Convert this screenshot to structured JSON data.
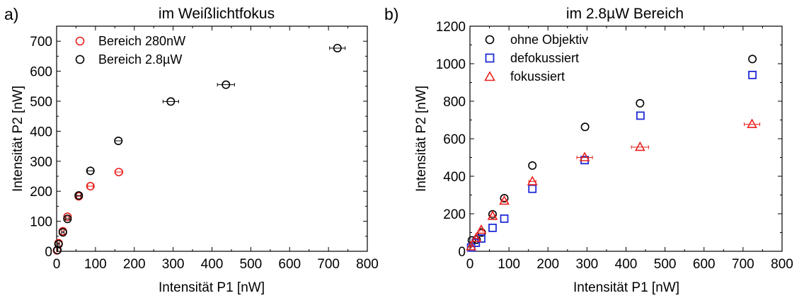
{
  "chart_data": [
    {
      "panel_letter": "a)",
      "type": "scatter",
      "title": "im Weißlichtfokus",
      "xlabel": "Intensität P1 [nW]",
      "ylabel": "Intensität P2 [nW]",
      "xlim": [
        0,
        800
      ],
      "ylim": [
        0,
        750
      ],
      "xticks": [
        0,
        100,
        200,
        300,
        400,
        500,
        600,
        700,
        800
      ],
      "yticks": [
        0,
        100,
        200,
        300,
        400,
        500,
        600,
        700
      ],
      "legend_position": "top-left",
      "series": [
        {
          "name": "Bereich 280nW",
          "color": "#e8211d",
          "marker": "circle",
          "points": [
            {
              "x": 1,
              "y": 3,
              "xerr": 1
            },
            {
              "x": 5,
              "y": 27,
              "xerr": 2
            },
            {
              "x": 16,
              "y": 67,
              "xerr": 3
            },
            {
              "x": 28,
              "y": 115,
              "xerr": 4
            },
            {
              "x": 57,
              "y": 183,
              "xerr": 5
            },
            {
              "x": 87,
              "y": 217,
              "xerr": 7
            },
            {
              "x": 160,
              "y": 264,
              "xerr": 10
            }
          ]
        },
        {
          "name": "Bereich 2.8µW",
          "color": "#000000",
          "marker": "circle",
          "points": [
            {
              "x": 2,
              "y": 4,
              "xerr": 1
            },
            {
              "x": 5,
              "y": 24,
              "xerr": 2
            },
            {
              "x": 16,
              "y": 63,
              "xerr": 3
            },
            {
              "x": 28,
              "y": 108,
              "xerr": 5
            },
            {
              "x": 57,
              "y": 186,
              "xerr": 6
            },
            {
              "x": 87,
              "y": 268,
              "xerr": 8
            },
            {
              "x": 159,
              "y": 368,
              "xerr": 9
            },
            {
              "x": 294,
              "y": 499,
              "xerr": 20
            },
            {
              "x": 436,
              "y": 555,
              "xerr": 22
            },
            {
              "x": 723,
              "y": 677,
              "xerr": 20
            }
          ]
        }
      ]
    },
    {
      "panel_letter": "b)",
      "type": "scatter",
      "title": "im 2.8µW Bereich",
      "xlabel": "Intensität P1 [nW]",
      "ylabel": "Intensität P2 [nW]",
      "xlim": [
        0,
        800
      ],
      "ylim": [
        0,
        1200
      ],
      "xticks": [
        0,
        100,
        200,
        300,
        400,
        500,
        600,
        700,
        800
      ],
      "yticks": [
        0,
        200,
        400,
        600,
        800,
        1000,
        1200
      ],
      "legend_position": "top-left",
      "series": [
        {
          "name": "ohne Objektiv",
          "color": "#000000",
          "marker": "circle",
          "points": [
            {
              "x": 5,
              "y": 58,
              "xerr": 0
            },
            {
              "x": 17,
              "y": 62,
              "xerr": 0
            },
            {
              "x": 30,
              "y": 100,
              "xerr": 0
            },
            {
              "x": 58,
              "y": 197,
              "xerr": 0
            },
            {
              "x": 88,
              "y": 283,
              "xerr": 0
            },
            {
              "x": 160,
              "y": 457,
              "xerr": 0
            },
            {
              "x": 295,
              "y": 663,
              "xerr": 0
            },
            {
              "x": 436,
              "y": 789,
              "xerr": 0
            },
            {
              "x": 724,
              "y": 1025,
              "xerr": 0
            }
          ]
        },
        {
          "name": "defokussiert",
          "color": "#1f2bd6",
          "marker": "square",
          "points": [
            {
              "x": 3,
              "y": 20,
              "xerr": 0
            },
            {
              "x": 15,
              "y": 45,
              "xerr": 0
            },
            {
              "x": 29,
              "y": 68,
              "xerr": 0
            },
            {
              "x": 58,
              "y": 125,
              "xerr": 0
            },
            {
              "x": 88,
              "y": 174,
              "xerr": 0
            },
            {
              "x": 160,
              "y": 333,
              "xerr": 0
            },
            {
              "x": 294,
              "y": 486,
              "xerr": 0
            },
            {
              "x": 437,
              "y": 723,
              "xerr": 0
            },
            {
              "x": 724,
              "y": 940,
              "xerr": 0
            }
          ]
        },
        {
          "name": "fokussiert",
          "color": "#e8211d",
          "marker": "triangle",
          "points": [
            {
              "x": 3,
              "y": 25,
              "xerr": 1
            },
            {
              "x": 16,
              "y": 70,
              "xerr": 3
            },
            {
              "x": 29,
              "y": 113,
              "xerr": 4
            },
            {
              "x": 58,
              "y": 187,
              "xerr": 6
            },
            {
              "x": 88,
              "y": 268,
              "xerr": 7
            },
            {
              "x": 160,
              "y": 372,
              "xerr": 9
            },
            {
              "x": 294,
              "y": 500,
              "xerr": 20
            },
            {
              "x": 436,
              "y": 555,
              "xerr": 22
            },
            {
              "x": 723,
              "y": 677,
              "xerr": 20
            }
          ]
        }
      ]
    }
  ]
}
